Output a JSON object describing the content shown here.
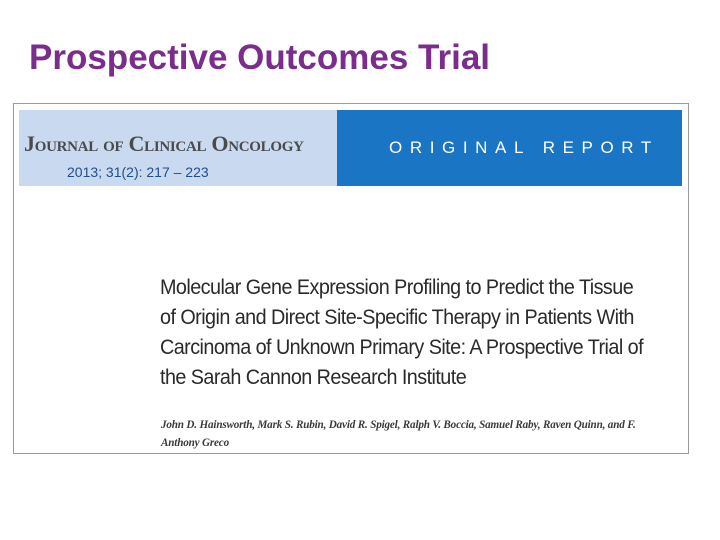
{
  "slide": {
    "title": "Prospective Outcomes Trial"
  },
  "article": {
    "journal": "Journal of Clinical Oncology",
    "report_type": "ORIGINAL REPORT",
    "citation": "2013; 31(2): 217 – 223",
    "title": "Molecular Gene Expression Profiling to Predict the Tissue of Origin and Direct Site-Specific Therapy in Patients With Carcinoma of Unknown Primary Site: A Prospective Trial of the Sarah Cannon Research Institute",
    "authors": "John D. Hainsworth, Mark S. Rubin, David R. Spigel, Ralph V. Boccia, Samuel Raby, Raven Quinn, and F. Anthony Greco"
  },
  "colors": {
    "title": "#7b2d8b",
    "banner_light": "#c9d9ef",
    "banner_dark": "#1a76c4",
    "citation": "#1f4e8c"
  }
}
